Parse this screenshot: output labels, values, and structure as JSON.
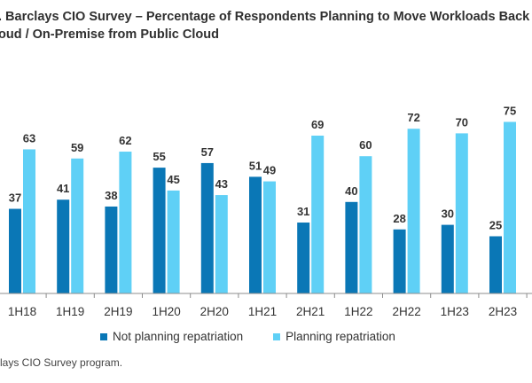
{
  "header": {
    "title_line1": ". Barclays CIO Survey – Percentage of Respondents Planning to Move Workloads Back",
    "title_line2": "oud / On-Premise from Public Cloud"
  },
  "footer": {
    "source": "lays CIO Survey program."
  },
  "colors": {
    "not_planning": "#0a77b6",
    "planning": "#5fd0f6",
    "axis": "#8c8c8c"
  },
  "chart_data": {
    "type": "bar",
    "title": ". Barclays CIO Survey – Percentage of Respondents Planning to Move Workloads Back oud / On-Premise from Public Cloud",
    "categories": [
      "1H18",
      "1H19",
      "2H19",
      "1H20",
      "2H20",
      "1H21",
      "2H21",
      "1H22",
      "2H22",
      "1H23",
      "2H23"
    ],
    "series": [
      {
        "name": "Not planning repatriation",
        "values": [
          37,
          41,
          38,
          55,
          57,
          51,
          31,
          40,
          28,
          30,
          25
        ]
      },
      {
        "name": "Planning repatriation",
        "values": [
          63,
          59,
          62,
          45,
          43,
          49,
          69,
          60,
          72,
          70,
          75
        ]
      }
    ],
    "ylim": [
      0,
      100
    ],
    "grid": false,
    "legend": "bottom-center"
  }
}
